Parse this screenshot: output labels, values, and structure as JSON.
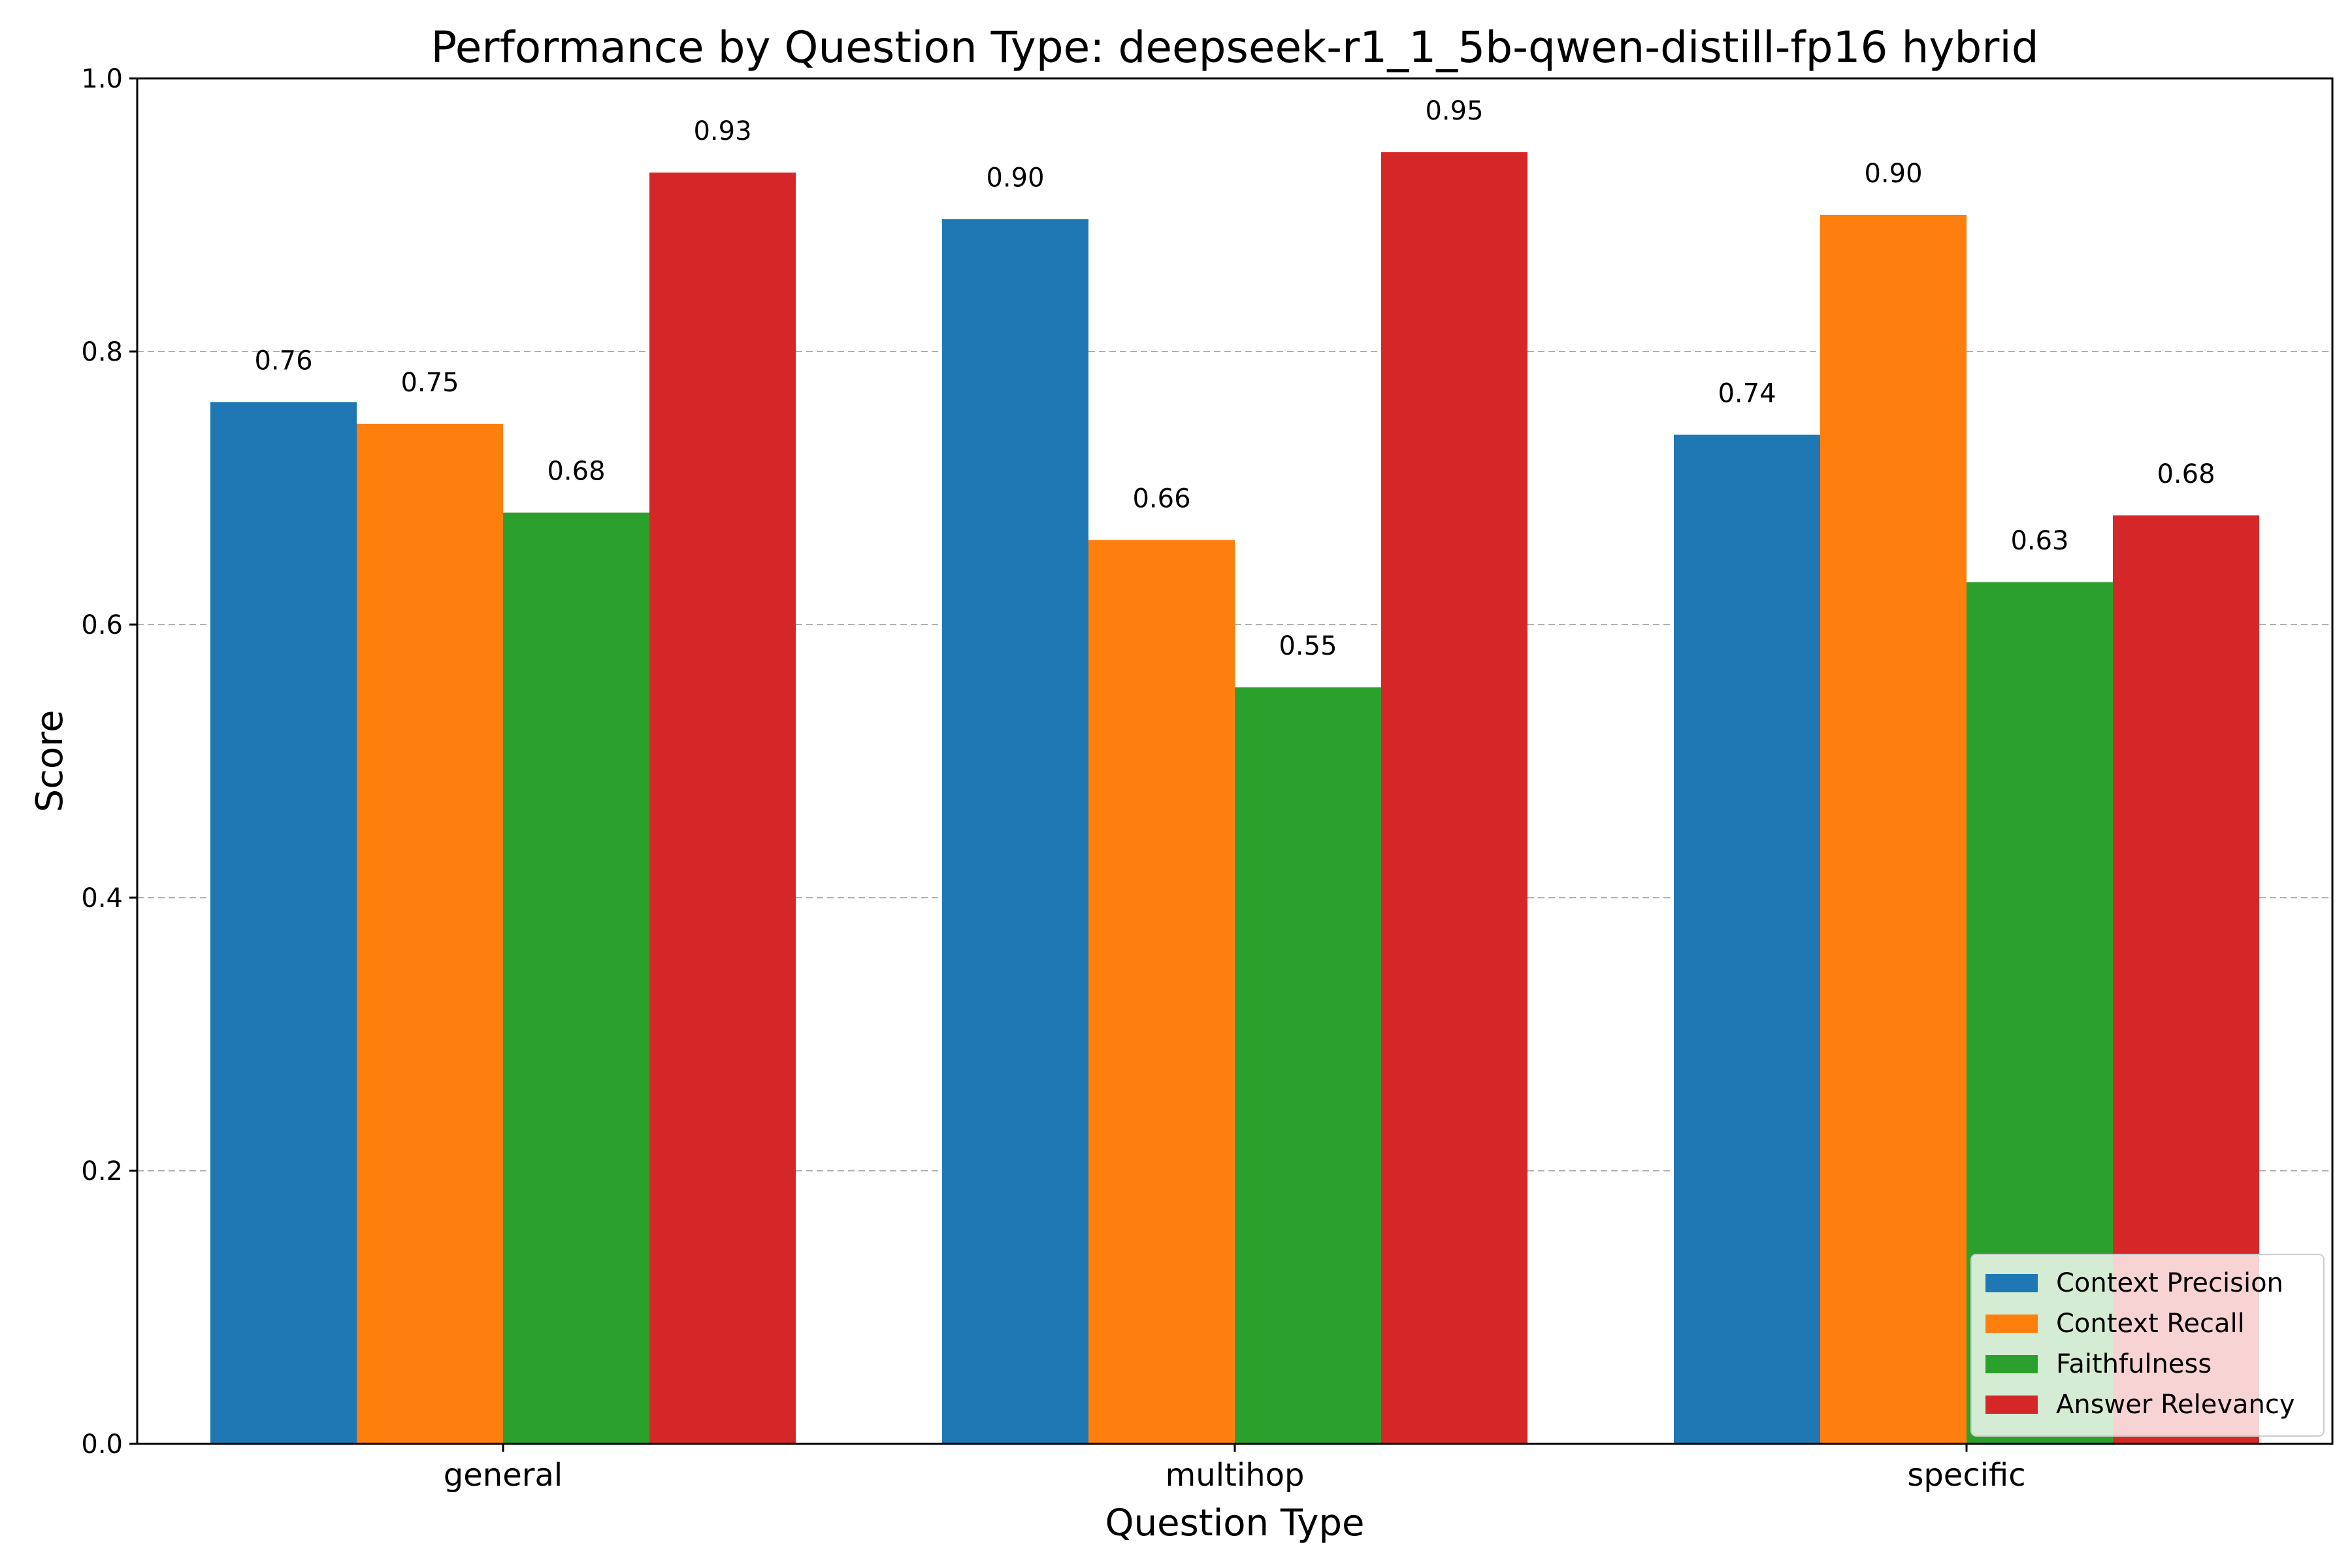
{
  "chart_data": {
    "type": "bar",
    "title": "Performance by Question Type: deepseek-r1_1_5b-qwen-distill-fp16 hybrid",
    "xlabel": "Question Type",
    "ylabel": "Score",
    "categories": [
      "general",
      "multihop",
      "specific"
    ],
    "ylim": [
      0,
      1.0
    ],
    "yticks": [
      "0.0",
      "0.2",
      "0.4",
      "0.6",
      "0.8",
      "1.0"
    ],
    "grid": "y-dashed",
    "legend_position": "lower-right",
    "series": [
      {
        "name": "Context Precision",
        "color": "#1f77b4",
        "values": [
          0.763,
          0.897,
          0.739
        ],
        "labels": [
          "0.76",
          "0.90",
          "0.74"
        ]
      },
      {
        "name": "Context Recall",
        "color": "#ff7f0e",
        "values": [
          0.747,
          0.662,
          0.9
        ],
        "labels": [
          "0.75",
          "0.66",
          "0.90"
        ]
      },
      {
        "name": "Faithfulness",
        "color": "#2ca02c",
        "values": [
          0.682,
          0.554,
          0.631
        ],
        "labels": [
          "0.68",
          "0.55",
          "0.63"
        ]
      },
      {
        "name": "Answer Relevancy",
        "color": "#d62728",
        "values": [
          0.931,
          0.946,
          0.68
        ],
        "labels": [
          "0.93",
          "0.95",
          "0.68"
        ]
      }
    ]
  }
}
